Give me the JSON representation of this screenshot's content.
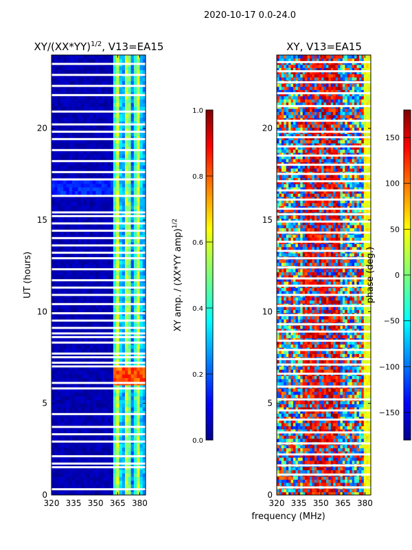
{
  "suptitle": "2020-10-17 0.0-24.0",
  "xlabel_shared": "frequency (MHz)",
  "chart_data": [
    {
      "type": "heatmap",
      "title_main": "XY/(XX*YY)",
      "title_sup": "1/2",
      "title_rest": ", V13=EA15",
      "ylabel": "UT (hours)",
      "x_ticks": [
        "320",
        "335",
        "350",
        "365",
        "380"
      ],
      "y_ticks": [
        "0",
        "5",
        "10",
        "15",
        "20"
      ],
      "xlim": [
        320,
        384
      ],
      "ylim": [
        0,
        24
      ],
      "colorbar": {
        "label_main": "XY amp. / (XX*YY amp)",
        "label_sup": "1/2",
        "ticks": [
          "0.0",
          "0.2",
          "0.4",
          "0.6",
          "0.8",
          "1.0"
        ],
        "range": [
          0.0,
          1.0
        ],
        "colormap": "jet"
      },
      "description": "Low normalized amplitude (~0.0-0.1) below 362 MHz; bright bands 362-382 MHz (0.3-0.6), with a high-amplitude patch (~0.8) near 6 UT; white gaps = flagged data."
    },
    {
      "type": "heatmap",
      "title": "XY, V13=EA15",
      "x_ticks": [
        "320",
        "335",
        "350",
        "365",
        "380"
      ],
      "y_ticks": [
        "0",
        "5",
        "10",
        "15",
        "20"
      ],
      "xlim": [
        320,
        384
      ],
      "ylim": [
        0,
        24
      ],
      "colorbar": {
        "label": "phase (deg.)",
        "ticks": [
          "150",
          "100",
          "50",
          "0",
          "−50",
          "−100",
          "−150"
        ],
        "range": [
          -180,
          180
        ],
        "colormap": "jet"
      },
      "description": "Mixed XY phase across band, mostly red/orange (~100-150 deg) between 335-360 MHz with blue patches (~-100 deg) elsewhere; yellow/green column near 380 MHz."
    }
  ],
  "colors": {
    "jet_dark_blue": "#00008f",
    "jet_blue": "#0050ff",
    "jet_cyan": "#20d0ff",
    "jet_green": "#7dff7a",
    "jet_yellow": "#ffe600",
    "jet_orange": "#ff8000",
    "jet_red": "#e00000",
    "jet_dark_red": "#800000"
  }
}
